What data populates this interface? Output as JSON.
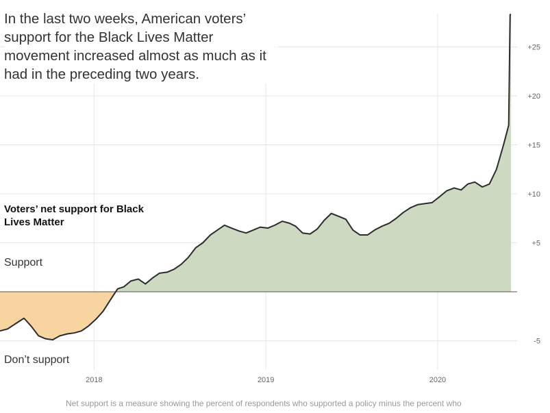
{
  "headline": "In the last two weeks, American voters’ support for the Black Lives Matter movement increased almost as much as it had in the preceding two years.",
  "labels": {
    "title": "Voters’ net support for Black Lives Matter",
    "support": "Support",
    "dont_support": "Don’t support"
  },
  "footnote": "Net support is a measure showing the percent of respondents who supported a policy minus the percent who",
  "colors": {
    "positive_fill": "#cdd9c1",
    "negative_fill": "#f8d4a0",
    "line": "#2b2b2b",
    "zero_line": "#555555",
    "grid": "#e6e6e6"
  },
  "chart_data": {
    "type": "area",
    "title": "Voters’ net support for Black Lives Matter",
    "xlabel": "",
    "ylabel": "",
    "x_ticks": [
      "2018",
      "2019",
      "2020"
    ],
    "y_ticks": [
      "+25",
      "+20",
      "+15",
      "+10",
      "+5",
      "-5"
    ],
    "xlim": [
      "2017-06-15",
      "2020-06-15"
    ],
    "ylim": [
      -6.5,
      29
    ],
    "grid": true,
    "series": [
      {
        "values": [
          {
            "x": "2017-06-15",
            "y": -4.0
          },
          {
            "x": "2017-07-01",
            "y": -3.8
          },
          {
            "x": "2017-07-20",
            "y": -3.2
          },
          {
            "x": "2017-08-05",
            "y": -2.7
          },
          {
            "x": "2017-08-20",
            "y": -3.5
          },
          {
            "x": "2017-09-05",
            "y": -4.5
          },
          {
            "x": "2017-09-20",
            "y": -4.8
          },
          {
            "x": "2017-10-05",
            "y": -4.9
          },
          {
            "x": "2017-10-20",
            "y": -4.5
          },
          {
            "x": "2017-11-05",
            "y": -4.3
          },
          {
            "x": "2017-11-20",
            "y": -4.2
          },
          {
            "x": "2017-12-05",
            "y": -4.0
          },
          {
            "x": "2017-12-20",
            "y": -3.5
          },
          {
            "x": "2018-01-05",
            "y": -2.8
          },
          {
            "x": "2018-01-20",
            "y": -2.0
          },
          {
            "x": "2018-02-05",
            "y": -0.8
          },
          {
            "x": "2018-02-20",
            "y": 0.3
          },
          {
            "x": "2018-03-05",
            "y": 0.5
          },
          {
            "x": "2018-03-20",
            "y": 1.1
          },
          {
            "x": "2018-04-05",
            "y": 1.3
          },
          {
            "x": "2018-04-20",
            "y": 0.8
          },
          {
            "x": "2018-05-05",
            "y": 1.4
          },
          {
            "x": "2018-05-20",
            "y": 1.9
          },
          {
            "x": "2018-06-05",
            "y": 2.0
          },
          {
            "x": "2018-06-20",
            "y": 2.3
          },
          {
            "x": "2018-07-05",
            "y": 2.8
          },
          {
            "x": "2018-07-20",
            "y": 3.5
          },
          {
            "x": "2018-08-05",
            "y": 4.5
          },
          {
            "x": "2018-08-20",
            "y": 5.0
          },
          {
            "x": "2018-09-05",
            "y": 5.8
          },
          {
            "x": "2018-09-20",
            "y": 6.3
          },
          {
            "x": "2018-10-05",
            "y": 6.8
          },
          {
            "x": "2018-10-20",
            "y": 6.5
          },
          {
            "x": "2018-11-05",
            "y": 6.2
          },
          {
            "x": "2018-11-20",
            "y": 6.0
          },
          {
            "x": "2018-12-05",
            "y": 6.3
          },
          {
            "x": "2018-12-20",
            "y": 6.6
          },
          {
            "x": "2019-01-05",
            "y": 6.5
          },
          {
            "x": "2019-01-20",
            "y": 6.8
          },
          {
            "x": "2019-02-05",
            "y": 7.2
          },
          {
            "x": "2019-02-20",
            "y": 7.0
          },
          {
            "x": "2019-03-05",
            "y": 6.7
          },
          {
            "x": "2019-03-20",
            "y": 6.0
          },
          {
            "x": "2019-04-05",
            "y": 5.9
          },
          {
            "x": "2019-04-20",
            "y": 6.4
          },
          {
            "x": "2019-05-05",
            "y": 7.3
          },
          {
            "x": "2019-05-20",
            "y": 8.0
          },
          {
            "x": "2019-06-05",
            "y": 7.7
          },
          {
            "x": "2019-06-20",
            "y": 7.4
          },
          {
            "x": "2019-07-05",
            "y": 6.3
          },
          {
            "x": "2019-07-20",
            "y": 5.8
          },
          {
            "x": "2019-08-05",
            "y": 5.8
          },
          {
            "x": "2019-08-20",
            "y": 6.3
          },
          {
            "x": "2019-09-05",
            "y": 6.7
          },
          {
            "x": "2019-09-20",
            "y": 7.0
          },
          {
            "x": "2019-10-05",
            "y": 7.5
          },
          {
            "x": "2019-10-20",
            "y": 8.1
          },
          {
            "x": "2019-11-05",
            "y": 8.6
          },
          {
            "x": "2019-11-20",
            "y": 8.9
          },
          {
            "x": "2019-12-05",
            "y": 9.0
          },
          {
            "x": "2019-12-20",
            "y": 9.1
          },
          {
            "x": "2020-01-05",
            "y": 9.7
          },
          {
            "x": "2020-01-20",
            "y": 10.3
          },
          {
            "x": "2020-02-05",
            "y": 10.6
          },
          {
            "x": "2020-02-20",
            "y": 10.4
          },
          {
            "x": "2020-03-05",
            "y": 11.0
          },
          {
            "x": "2020-03-20",
            "y": 11.2
          },
          {
            "x": "2020-04-05",
            "y": 10.7
          },
          {
            "x": "2020-04-20",
            "y": 11.0
          },
          {
            "x": "2020-05-05",
            "y": 12.5
          },
          {
            "x": "2020-05-20",
            "y": 15.0
          },
          {
            "x": "2020-05-31",
            "y": 17.0
          },
          {
            "x": "2020-06-03",
            "y": 28.3
          },
          {
            "x": "2020-06-05",
            "y": 28.3
          }
        ]
      }
    ]
  }
}
